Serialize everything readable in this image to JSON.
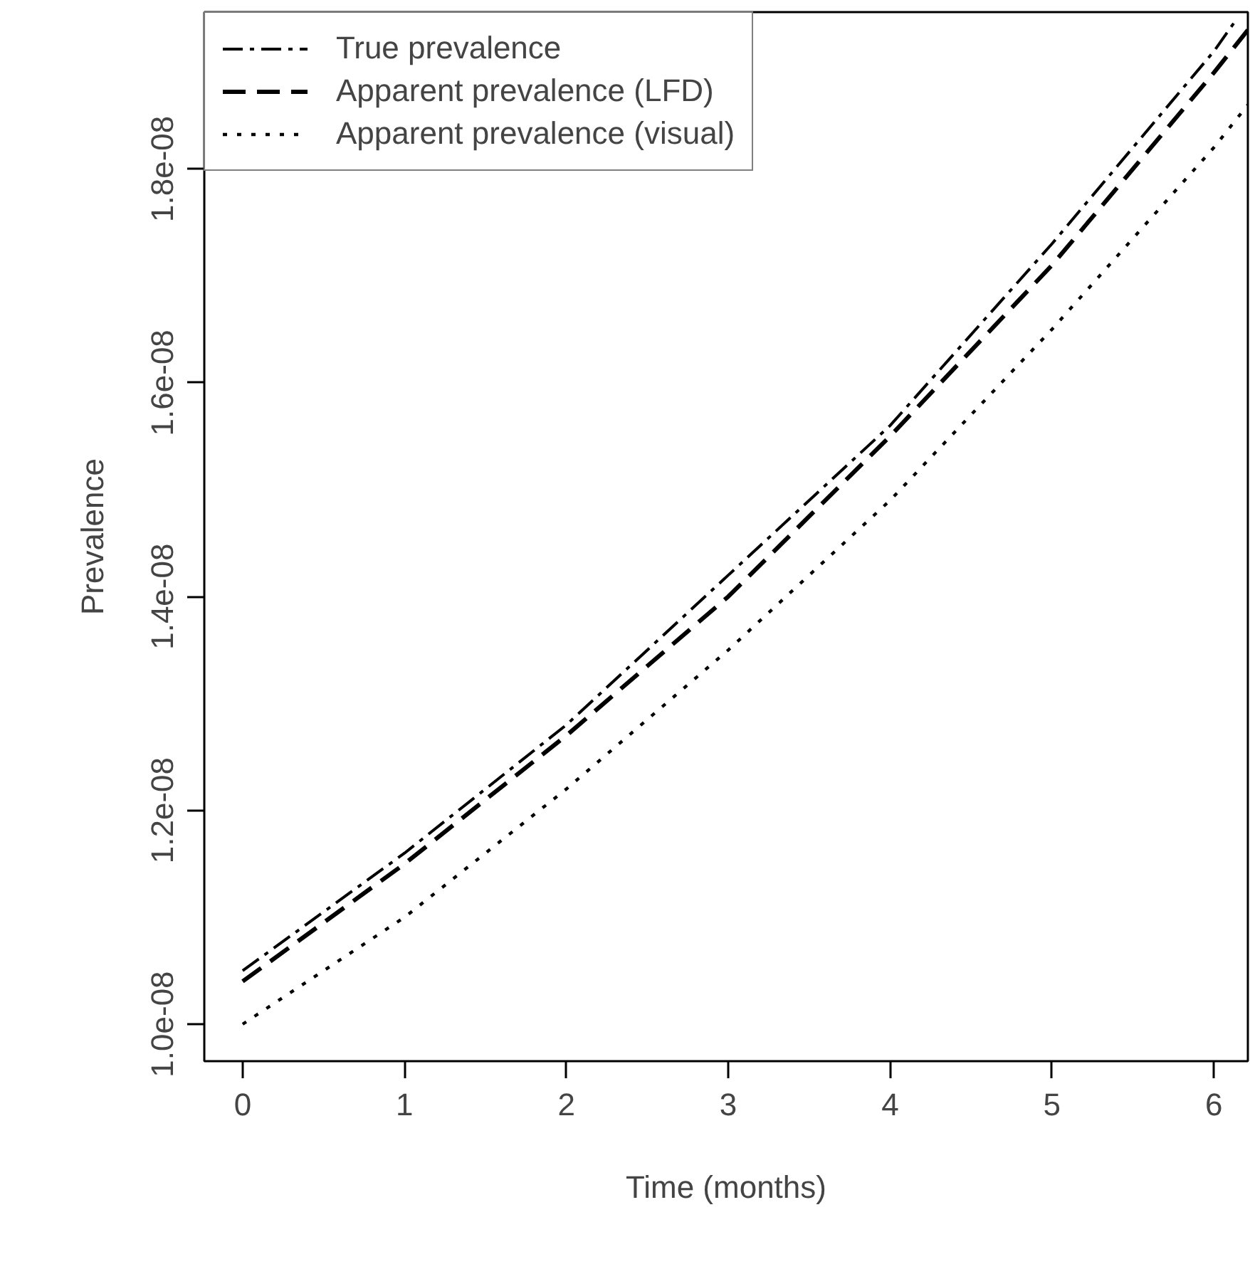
{
  "chart_data": {
    "type": "line",
    "xlabel": "Time (months)",
    "ylabel": "Prevalence",
    "xlim": [
      -0.237,
      6.21
    ],
    "ylim": [
      9.654e-09,
      1.9467e-08
    ],
    "xticks": [
      0,
      1,
      2,
      3,
      4,
      5,
      6
    ],
    "yticks": [
      {
        "value": 1e-08,
        "label": "1.0e-08"
      },
      {
        "value": 1.2e-08,
        "label": "1.2e-08"
      },
      {
        "value": 1.4e-08,
        "label": "1.4e-08"
      },
      {
        "value": 1.6e-08,
        "label": "1.6e-08"
      },
      {
        "value": 1.8e-08,
        "label": "1.8e-08"
      }
    ],
    "grid": false,
    "legend": "top left",
    "marker": "none",
    "series": [
      {
        "name": "True prevalence",
        "color": "#000000",
        "line_style": "dashdot",
        "x": [
          0,
          1,
          2,
          3,
          4,
          5,
          6,
          6.14
        ],
        "values": [
          1.05e-08,
          1.16e-08,
          1.28e-08,
          1.42e-08,
          1.56e-08,
          1.73e-08,
          1.91e-08,
          1.94e-08
        ]
      },
      {
        "name": "Apparent prevalence (LFD)",
        "color": "#000000",
        "line_style": "dashed",
        "x": [
          0,
          1,
          2,
          3,
          4,
          5,
          6,
          6.21
        ],
        "values": [
          1.04e-08,
          1.15e-08,
          1.27e-08,
          1.4e-08,
          1.55e-08,
          1.71e-08,
          1.89e-08,
          1.93e-08
        ]
      },
      {
        "name": "Apparent prevalence (visual)",
        "color": "#000000",
        "line_style": "dotted",
        "x": [
          0,
          1,
          2,
          3,
          4,
          5,
          6,
          6.21
        ],
        "values": [
          1e-08,
          1.1e-08,
          1.22e-08,
          1.35e-08,
          1.49e-08,
          1.65e-08,
          1.82e-08,
          1.86e-08
        ]
      }
    ]
  }
}
